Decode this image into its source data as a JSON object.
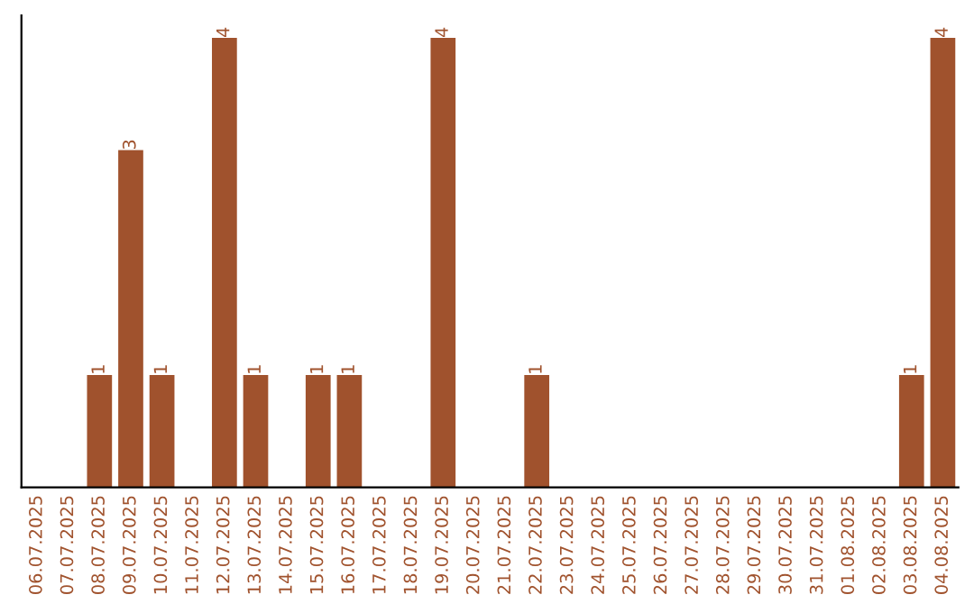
{
  "chart_data": {
    "type": "bar",
    "categories": [
      "06.07.2025",
      "07.07.2025",
      "08.07.2025",
      "09.07.2025",
      "10.07.2025",
      "11.07.2025",
      "12.07.2025",
      "13.07.2025",
      "14.07.2025",
      "15.07.2025",
      "16.07.2025",
      "17.07.2025",
      "18.07.2025",
      "19.07.2025",
      "20.07.2025",
      "21.07.2025",
      "22.07.2025",
      "23.07.2025",
      "24.07.2025",
      "25.07.2025",
      "26.07.2025",
      "27.07.2025",
      "28.07.2025",
      "29.07.2025",
      "30.07.2025",
      "31.07.2025",
      "01.08.2025",
      "02.08.2025",
      "03.08.2025",
      "04.08.2025"
    ],
    "values": [
      0,
      0,
      1,
      3,
      1,
      0,
      4,
      1,
      0,
      1,
      1,
      0,
      0,
      4,
      0,
      0,
      1,
      0,
      0,
      0,
      0,
      0,
      0,
      0,
      0,
      0,
      0,
      0,
      1,
      4
    ],
    "value_labels": [
      null,
      null,
      "1",
      "3",
      "1",
      null,
      "4",
      "1",
      null,
      "1",
      "1",
      null,
      null,
      "4",
      null,
      null,
      "1",
      null,
      null,
      null,
      null,
      null,
      null,
      null,
      null,
      null,
      null,
      null,
      "1",
      "4"
    ],
    "color": "#a0522d",
    "ylim": [
      0,
      4.2
    ],
    "tick_labels": "x",
    "grid": false,
    "legend": false
  }
}
